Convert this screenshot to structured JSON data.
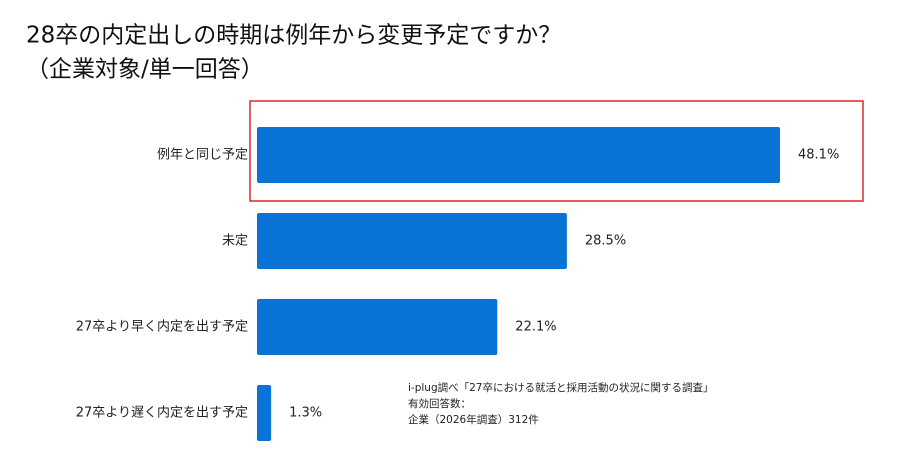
{
  "chart_data": {
    "type": "hbar",
    "title": [
      "28卒の内定出しの時期は例年から変更予定ですか？",
      "（企業対象/単一回答）"
    ],
    "categories": [
      "例年と同じ予定",
      "未定",
      "27卒より早く内定を出す予定",
      "27卒より遅く内定を出す予定"
    ],
    "values": [
      48.1,
      28.5,
      22.1,
      1.3
    ],
    "value_labels": [
      "48.1%",
      "28.5%",
      "22.1%",
      "1.3%"
    ],
    "color": "#0a74d6",
    "highlight_color": "#e0262c",
    "note": [
      "i-plug調べ「27卒における就活と採用活動の状況に関する調査」",
      "有効回答数：",
      "企業（2026年調査）312件"
    ]
  }
}
